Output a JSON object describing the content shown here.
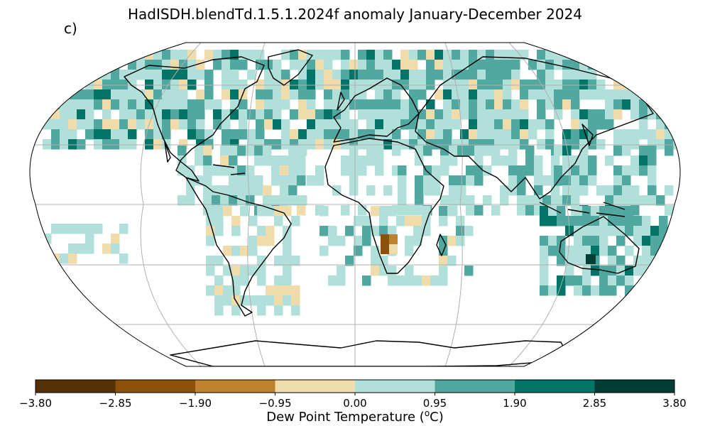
{
  "title": "HadISDH.blendTd.1.5.1.2024f anomaly January-December 2024",
  "panel_label": "c)",
  "colorbar": {
    "label_prefix": "Dew Point Temperature (",
    "label_unit_sup": "o",
    "label_suffix": "C)",
    "ticks": [
      "−3.80",
      "−2.85",
      "−1.90",
      "−0.95",
      "0.00",
      "0.95",
      "1.90",
      "2.85",
      "3.80"
    ],
    "colors": [
      "#543005",
      "#8c510a",
      "#bf812d",
      "#f0dcab",
      "#b0e0d9",
      "#50a8a0",
      "#027568",
      "#003d32"
    ]
  },
  "map": {
    "projection": "Robinson",
    "gridlines": true,
    "grid_color": "#b0b0b0",
    "coastline_color": "#000000"
  }
}
